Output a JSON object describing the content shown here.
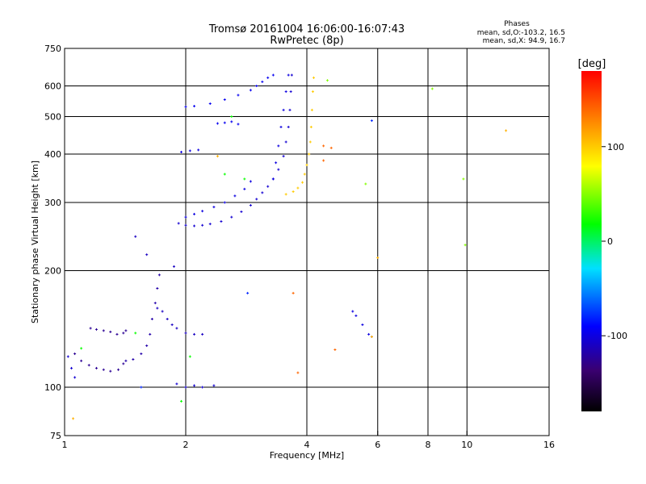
{
  "header": {
    "title_line1": "Tromsø 20161004 16:06:00-16:07:43",
    "title_line2": "RwPretec (8p)",
    "phases_title": "Phases",
    "phases_o": "mean, sd,O:-103.2, 16.5",
    "phases_x": "mean, sd,X:  94.9, 16.7"
  },
  "colorbar": {
    "unit_label": "[deg]",
    "ticks": [
      {
        "value": 100,
        "label": "100"
      },
      {
        "value": 0,
        "label": "0"
      },
      {
        "value": -100,
        "label": "-100"
      }
    ],
    "range": [
      -180,
      180
    ]
  },
  "chart_data": {
    "type": "scatter",
    "xlabel": "Frequency [MHz]",
    "ylabel": "Stationary phase Virtual Height [km]",
    "xscale": "log",
    "yscale": "log",
    "xlim": [
      1,
      16
    ],
    "ylim": [
      75,
      750
    ],
    "x_ticks": [
      {
        "value": 1,
        "label": "1"
      },
      {
        "value": 2,
        "label": "2"
      },
      {
        "value": 4,
        "label": "4"
      },
      {
        "value": 6,
        "label": "6"
      },
      {
        "value": 8,
        "label": "8"
      },
      {
        "value": 10,
        "label": "10"
      },
      {
        "value": 16,
        "label": "16"
      }
    ],
    "x_grid": [
      2,
      4,
      6,
      8,
      10
    ],
    "y_ticks": [
      {
        "value": 75,
        "label": "75"
      },
      {
        "value": 100,
        "label": "100"
      },
      {
        "value": 200,
        "label": "200"
      },
      {
        "value": 300,
        "label": "300"
      },
      {
        "value": 400,
        "label": "400"
      },
      {
        "value": 500,
        "label": "500"
      },
      {
        "value": 600,
        "label": "600"
      },
      {
        "value": 750,
        "label": "750"
      }
    ],
    "y_grid": [
      100,
      200,
      300,
      400,
      500,
      600
    ],
    "grid": true,
    "traces": [
      {
        "name": "",
        "phase": -125,
        "points": [
          [
            1.16,
            142
          ],
          [
            1.2,
            141
          ],
          [
            1.25,
            140
          ],
          [
            1.3,
            139
          ],
          [
            1.35,
            137
          ],
          [
            1.4,
            138
          ],
          [
            1.42,
            140
          ]
        ]
      },
      {
        "name": "",
        "phase": -125,
        "points": [
          [
            1.06,
            122
          ],
          [
            1.1,
            117
          ],
          [
            1.15,
            114
          ],
          [
            1.2,
            112
          ],
          [
            1.25,
            111
          ],
          [
            1.3,
            110
          ],
          [
            1.36,
            111
          ],
          [
            1.4,
            115
          ]
        ]
      },
      {
        "name": "",
        "phase": -118,
        "points": [
          [
            1.42,
            117
          ],
          [
            1.48,
            118
          ],
          [
            1.55,
            122
          ],
          [
            1.6,
            128
          ],
          [
            1.63,
            137
          ],
          [
            1.65,
            150
          ],
          [
            1.68,
            165
          ],
          [
            1.7,
            180
          ],
          [
            1.72,
            195
          ]
        ]
      },
      {
        "name": "",
        "phase": -110,
        "points": [
          [
            1.7,
            160
          ],
          [
            1.75,
            157
          ],
          [
            1.8,
            150
          ],
          [
            1.85,
            145
          ],
          [
            1.9,
            142
          ],
          [
            2.0,
            138
          ],
          [
            2.1,
            137
          ],
          [
            2.2,
            137
          ]
        ]
      },
      {
        "name": "",
        "phase": -105,
        "points": [
          [
            1.02,
            120
          ],
          [
            1.04,
            112
          ],
          [
            1.06,
            106
          ]
        ]
      },
      {
        "name": "",
        "phase": -105,
        "points": [
          [
            1.9,
            102
          ],
          [
            2.0,
            100
          ],
          [
            2.1,
            101
          ],
          [
            2.2,
            100
          ],
          [
            2.35,
            101
          ]
        ]
      },
      {
        "name": "",
        "phase": -105,
        "points": [
          [
            1.92,
            265
          ],
          [
            2.0,
            262
          ],
          [
            2.1,
            261
          ],
          [
            2.2,
            262
          ],
          [
            2.3,
            264
          ],
          [
            2.45,
            268
          ],
          [
            2.6,
            275
          ],
          [
            2.75,
            284
          ],
          [
            2.9,
            295
          ],
          [
            3.0,
            306
          ],
          [
            3.1,
            318
          ],
          [
            3.2,
            330
          ],
          [
            3.3,
            345
          ],
          [
            3.4,
            365
          ],
          [
            3.5,
            395
          ],
          [
            3.55,
            430
          ],
          [
            3.6,
            470
          ],
          [
            3.63,
            520
          ],
          [
            3.65,
            580
          ],
          [
            3.67,
            640
          ]
        ]
      },
      {
        "name": "",
        "phase": -100,
        "points": [
          [
            2.0,
            275
          ],
          [
            2.1,
            280
          ],
          [
            2.2,
            285
          ],
          [
            2.35,
            292
          ],
          [
            2.5,
            300
          ],
          [
            2.65,
            312
          ],
          [
            2.8,
            325
          ],
          [
            2.9,
            340
          ]
        ]
      },
      {
        "name": "",
        "phase": -100,
        "points": [
          [
            1.95,
            405
          ],
          [
            2.05,
            408
          ],
          [
            2.15,
            410
          ]
        ]
      },
      {
        "name": "",
        "phase": -95,
        "points": [
          [
            2.0,
            530
          ],
          [
            2.1,
            532
          ],
          [
            2.3,
            540
          ],
          [
            2.5,
            553
          ],
          [
            2.7,
            568
          ],
          [
            2.9,
            585
          ],
          [
            3.0,
            600
          ],
          [
            3.1,
            615
          ],
          [
            3.2,
            630
          ],
          [
            3.3,
            640
          ]
        ]
      },
      {
        "name": "",
        "phase": -100,
        "points": [
          [
            3.3,
            345
          ],
          [
            3.35,
            380
          ],
          [
            3.4,
            420
          ],
          [
            3.45,
            470
          ],
          [
            3.5,
            520
          ],
          [
            3.55,
            580
          ],
          [
            3.6,
            640
          ]
        ]
      },
      {
        "name": "",
        "phase": 100,
        "points": [
          [
            3.55,
            315
          ],
          [
            3.7,
            320
          ],
          [
            3.8,
            327
          ],
          [
            3.9,
            338
          ],
          [
            3.95,
            355
          ],
          [
            4.0,
            375
          ],
          [
            4.05,
            400
          ],
          [
            4.08,
            430
          ],
          [
            4.1,
            470
          ],
          [
            4.12,
            520
          ],
          [
            4.14,
            580
          ],
          [
            4.16,
            630
          ]
        ]
      },
      {
        "name": "",
        "phase": -95,
        "points": [
          [
            2.4,
            480
          ],
          [
            2.5,
            482
          ],
          [
            2.6,
            485
          ],
          [
            2.7,
            478
          ]
        ]
      },
      {
        "name": "",
        "phase": -110,
        "points": [
          [
            1.5,
            245
          ],
          [
            1.6,
            220
          ],
          [
            1.87,
            205
          ]
        ]
      },
      {
        "name": "",
        "phase": -100,
        "points": [
          [
            5.2,
            157
          ],
          [
            5.3,
            153
          ],
          [
            5.5,
            145
          ],
          [
            5.7,
            137
          ],
          [
            5.8,
            135
          ]
        ]
      },
      {
        "name": "",
        "phase": 20,
        "points": [
          [
            1.5,
            138
          ],
          [
            1.1,
            126
          ],
          [
            2.05,
            120
          ],
          [
            1.95,
            92
          ],
          [
            2.6,
            500
          ],
          [
            2.5,
            355
          ],
          [
            2.8,
            345
          ]
        ]
      },
      {
        "name": "",
        "phase": 50,
        "points": [
          [
            4.5,
            620
          ],
          [
            5.6,
            335
          ],
          [
            9.8,
            345
          ],
          [
            9.9,
            233
          ],
          [
            8.2,
            590
          ]
        ]
      },
      {
        "name": "",
        "phase": 140,
        "points": [
          [
            4.4,
            420
          ],
          [
            4.6,
            415
          ],
          [
            4.4,
            385
          ],
          [
            3.8,
            109
          ],
          [
            4.7,
            125
          ],
          [
            3.7,
            175
          ]
        ]
      },
      {
        "name": "",
        "phase": 110,
        "points": [
          [
            1.05,
            83
          ],
          [
            5.8,
            135
          ],
          [
            6.0,
            216
          ],
          [
            12.5,
            460
          ],
          [
            2.4,
            395
          ]
        ]
      },
      {
        "name": "",
        "phase": -80,
        "points": [
          [
            2.85,
            175
          ],
          [
            5.8,
            488
          ],
          [
            1.55,
            100
          ]
        ]
      }
    ]
  }
}
